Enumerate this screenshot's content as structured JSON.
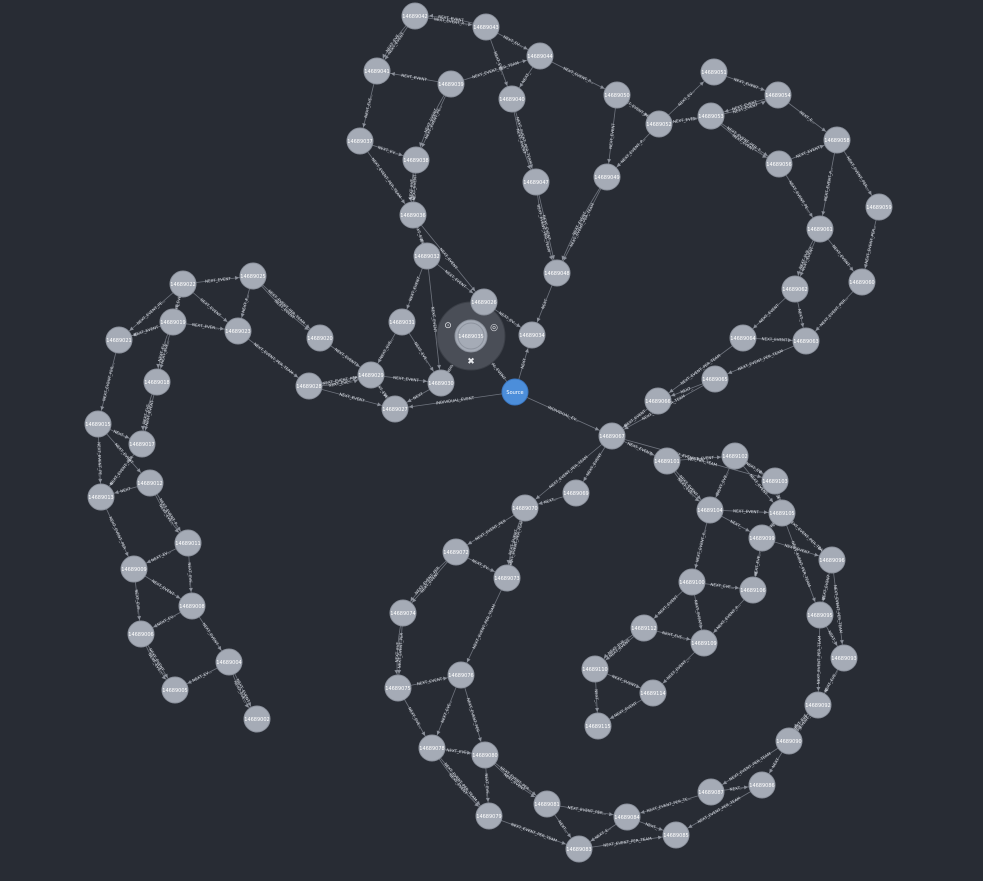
{
  "graph": {
    "source_label": "Source",
    "selected_node": "14689035",
    "relationship_types": [
      "NEXT_EVENT",
      "NEXT_EVENT_PER_TEAM",
      "INDIVIDUAL_EVENT"
    ],
    "ring_actions": [
      "lock-icon",
      "hide-icon",
      "expand-icon"
    ],
    "nodes": [
      "14689042",
      "14689043",
      "14689044",
      "14689041",
      "14689039",
      "14689040",
      "14689050",
      "14689051",
      "14689054",
      "14689052",
      "14689053",
      "14689037",
      "14689038",
      "14689047",
      "14689049",
      "14689036",
      "14689056",
      "14689058",
      "14689059",
      "14689032",
      "14689048",
      "14689061",
      "14689062",
      "14689060",
      "14689025",
      "14689022",
      "14689023",
      "14689035",
      "14689031",
      "14689034",
      "14689064",
      "14689063",
      "14689021",
      "14689019",
      "14689020",
      "14689026",
      "14689018",
      "14689028",
      "14689029",
      "14689030",
      "14689065",
      "14689027",
      "14689015",
      "14689066",
      "14689067",
      "14689017",
      "14689101",
      "14689102",
      "14689012",
      "14689103",
      "14689013",
      "14689069",
      "14689070",
      "14689104",
      "14689105",
      "14689099",
      "14689011",
      "14689072",
      "14689009",
      "14689096",
      "14689073",
      "14689008",
      "14689100",
      "14689106",
      "14689006",
      "14689074",
      "14689095",
      "14689112",
      "14689109",
      "14689004",
      "14689093",
      "14689005",
      "14689110",
      "14689076",
      "14689075",
      "14689002",
      "14689114",
      "14689092",
      "14689115",
      "14689078",
      "14689080",
      "14689090",
      "14689081",
      "14689087",
      "14689086",
      "14689079",
      "14689084",
      "14689083",
      "14689085"
    ]
  }
}
